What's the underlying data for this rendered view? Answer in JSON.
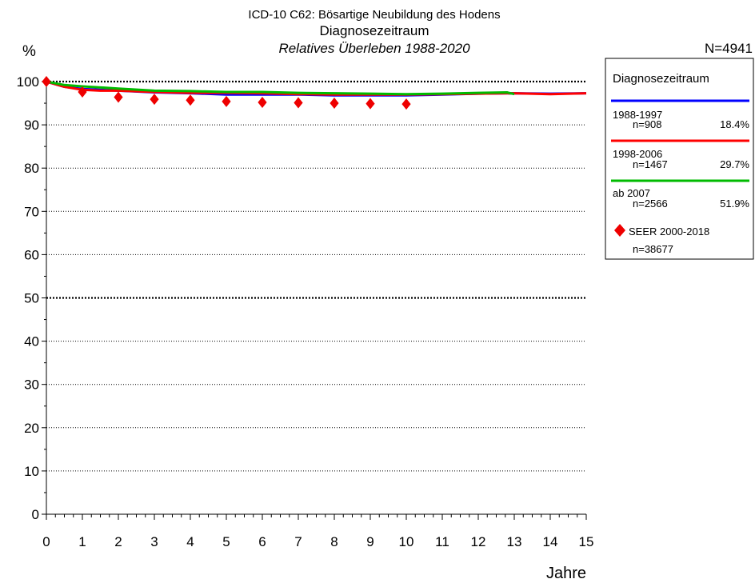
{
  "chart_data": {
    "type": "line",
    "super_title": "ICD-10 C62: Bösartige Neubildung des Hodens",
    "title": "Diagnosezeitraum",
    "subtitle": "Relatives Überleben 1988-2020",
    "ylabel": "%",
    "xlabel": "Jahre",
    "total_n": "N=4941",
    "xlim": [
      0,
      15
    ],
    "ylim": [
      0,
      100
    ],
    "x_ticks": [
      "0",
      "1",
      "2",
      "3",
      "4",
      "5",
      "6",
      "7",
      "8",
      "9",
      "10",
      "11",
      "12",
      "13",
      "14",
      "15"
    ],
    "y_ticks": [
      "0",
      "10",
      "20",
      "30",
      "40",
      "50",
      "60",
      "70",
      "80",
      "90",
      "100"
    ],
    "y_tick_values": [
      0,
      10,
      20,
      30,
      40,
      50,
      60,
      70,
      80,
      90,
      100
    ],
    "grid": "horizontal dotted, bold at 50 and 100",
    "legend_position": "right",
    "legend": {
      "title": "Diagnosezeitraum",
      "entries": [
        {
          "name": "1988-1997",
          "n": "n=908",
          "pct": "18.4%",
          "color": "#0000ff"
        },
        {
          "name": "1998-2006",
          "n": "n=1467",
          "pct": "29.7%",
          "color": "#ff0000"
        },
        {
          "name": "ab 2007",
          "n": "n=2566",
          "pct": "51.9%",
          "color": "#00bb00"
        }
      ],
      "reference": {
        "name": "SEER 2000-2018",
        "n": "n=38677",
        "color": "#ee0000",
        "marker": "diamond"
      }
    },
    "series": [
      {
        "name": "1988-1997",
        "color": "#0000ff",
        "x": [
          0,
          0.5,
          1,
          2,
          3,
          4,
          5,
          6,
          7,
          8,
          9,
          10,
          11,
          12,
          13,
          14,
          15
        ],
        "y": [
          100,
          98.8,
          98.3,
          97.9,
          97.5,
          97.3,
          97.0,
          97.0,
          97.0,
          96.8,
          96.8,
          96.8,
          97.0,
          97.2,
          97.3,
          97.2,
          97.3
        ]
      },
      {
        "name": "1998-2006",
        "color": "#ff0000",
        "x": [
          0,
          0.5,
          1,
          1.5,
          2,
          3,
          4,
          5,
          6,
          7,
          8,
          9,
          10,
          11,
          12,
          13,
          14,
          15
        ],
        "y": [
          100,
          98.8,
          98.1,
          97.9,
          97.9,
          97.6,
          97.4,
          97.4,
          97.3,
          97.1,
          97.0,
          97.0,
          97.0,
          97.1,
          97.2,
          97.3,
          97.1,
          97.3
        ]
      },
      {
        "name": "ab 2007",
        "color": "#00bb00",
        "x": [
          0,
          0.5,
          1,
          2,
          3,
          4,
          5,
          6,
          7,
          8,
          9,
          10,
          11,
          12,
          12.8,
          13
        ],
        "y": [
          100,
          99.2,
          98.9,
          98.4,
          97.9,
          97.8,
          97.6,
          97.6,
          97.4,
          97.3,
          97.2,
          97.1,
          97.2,
          97.4,
          97.5,
          97.1
        ]
      }
    ],
    "reference_points": {
      "name": "SEER 2000-2018",
      "color": "#ee0000",
      "x": [
        0,
        1,
        2,
        3,
        4,
        5,
        6,
        7,
        8,
        9,
        10
      ],
      "y": [
        100,
        97.6,
        96.4,
        95.9,
        95.7,
        95.4,
        95.2,
        95.1,
        95.0,
        94.9,
        94.8
      ]
    }
  }
}
